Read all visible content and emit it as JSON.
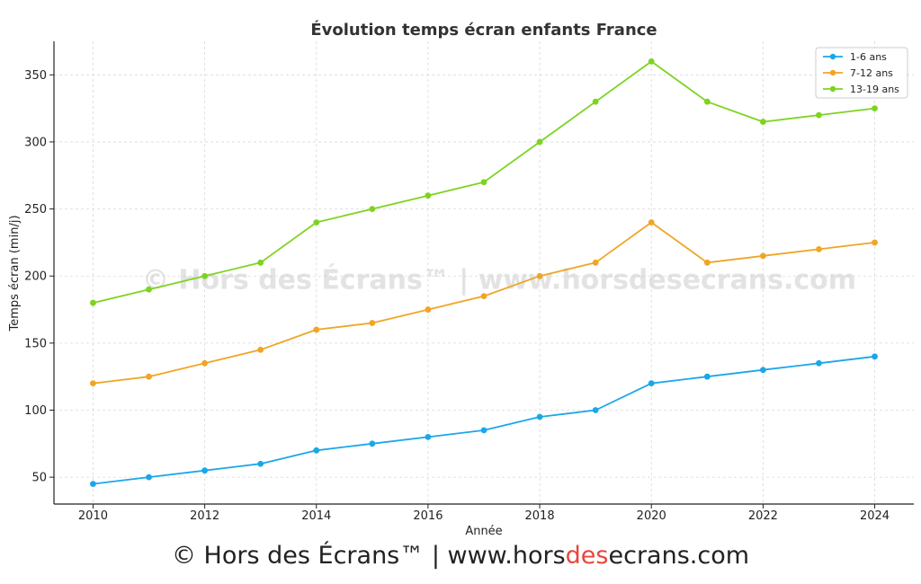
{
  "colors": {
    "series_1_6": "#1aa7e8",
    "series_7_12": "#f0a526",
    "series_13_19": "#7ed321",
    "footer_accent": "#e8453c"
  },
  "watermark": "© Hors des Écrans™ | www.horsdesecrans.com",
  "footer": {
    "prefix": "© Hors des Écrans™ | www.hors",
    "accent": "des",
    "suffix": "ecrans.com"
  },
  "chart_data": {
    "type": "line",
    "title": "Évolution temps écran enfants France",
    "xlabel": "Année",
    "ylabel": "Temps écran (min/j)",
    "x": [
      2010,
      2011,
      2012,
      2013,
      2014,
      2015,
      2016,
      2017,
      2018,
      2019,
      2020,
      2021,
      2022,
      2023,
      2024
    ],
    "xticks": [
      "2010",
      "2012",
      "2014",
      "2016",
      "2018",
      "2020",
      "2022",
      "2024"
    ],
    "yticks": [
      "50",
      "100",
      "150",
      "200",
      "250",
      "300",
      "350"
    ],
    "xlim": [
      2009.3,
      2024.7
    ],
    "ylim": [
      30,
      375
    ],
    "grid": true,
    "legend_position": "top-right",
    "series": [
      {
        "name": "1-6 ans",
        "color": "#1aa7e8",
        "values": [
          45,
          50,
          55,
          60,
          70,
          75,
          80,
          85,
          95,
          100,
          120,
          125,
          130,
          135,
          140
        ]
      },
      {
        "name": "7-12 ans",
        "color": "#f0a526",
        "values": [
          120,
          125,
          135,
          145,
          160,
          165,
          175,
          185,
          200,
          210,
          240,
          210,
          215,
          220,
          225
        ]
      },
      {
        "name": "13-19 ans",
        "color": "#7ed321",
        "values": [
          180,
          190,
          200,
          210,
          240,
          250,
          260,
          270,
          300,
          330,
          360,
          330,
          315,
          320,
          325
        ]
      }
    ]
  }
}
